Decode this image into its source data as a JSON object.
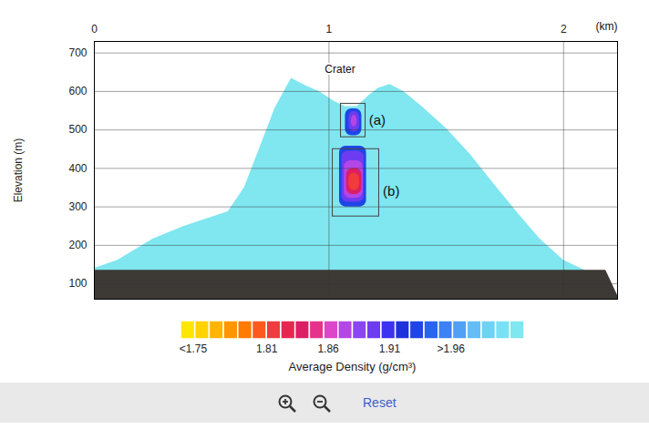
{
  "chart_data": {
    "type": "heatmap",
    "x_label": "(km)",
    "y_label": "Elevation (m)",
    "xlim": [
      0,
      2.23
    ],
    "xticks": [
      0,
      1,
      2
    ],
    "ylim": [
      60,
      730
    ],
    "yticks": [
      100,
      200,
      300,
      400,
      500,
      600,
      700
    ],
    "grid": true,
    "profile": {
      "x": [
        0,
        0.1,
        0.25,
        0.38,
        0.5,
        0.57,
        0.64,
        0.7,
        0.77,
        0.84,
        0.9,
        0.96,
        1.02,
        1.07,
        1.12,
        1.17,
        1.21,
        1.26,
        1.32,
        1.4,
        1.5,
        1.6,
        1.7,
        1.8,
        1.9,
        2.0,
        2.09
      ],
      "elevation": [
        140,
        161,
        216,
        249,
        273,
        287,
        350,
        445,
        556,
        634,
        615,
        599,
        575,
        561,
        561,
        589,
        608,
        618,
        599,
        559,
        504,
        438,
        362,
        287,
        216,
        161,
        135
      ]
    },
    "basement": {
      "x": [
        0,
        2.18,
        2.23
      ],
      "elevation": [
        135,
        135,
        70
      ]
    },
    "cells": [
      {
        "x1": 1.07,
        "x2": 1.14,
        "y1": 485,
        "y2": 555,
        "density": 1.93
      },
      {
        "x1": 1.085,
        "x2": 1.13,
        "y1": 495,
        "y2": 548,
        "density": 1.9
      },
      {
        "x1": 1.095,
        "x2": 1.12,
        "y1": 508,
        "y2": 538,
        "density": 1.88
      },
      {
        "x1": 1.045,
        "x2": 1.16,
        "y1": 300,
        "y2": 458,
        "density": 1.93
      },
      {
        "x1": 1.055,
        "x2": 1.15,
        "y1": 312,
        "y2": 445,
        "density": 1.9
      },
      {
        "x1": 1.065,
        "x2": 1.145,
        "y1": 322,
        "y2": 420,
        "density": 1.87
      },
      {
        "x1": 1.075,
        "x2": 1.14,
        "y1": 332,
        "y2": 400,
        "density": 1.84
      },
      {
        "x1": 1.085,
        "x2": 1.13,
        "y1": 342,
        "y2": 388,
        "density": 1.82
      }
    ],
    "annotations": [
      {
        "text": "Crater",
        "x": 1.047,
        "y": 658
      },
      {
        "text": "(a)",
        "x": 1.17,
        "y": 525,
        "box": {
          "x1": 1.051,
          "x2": 1.156,
          "y1": 481,
          "y2": 568
        }
      },
      {
        "text": "(b)",
        "x": 1.23,
        "y": 339,
        "box": {
          "x1": 1.016,
          "x2": 1.214,
          "y1": 275,
          "y2": 450
        }
      }
    ],
    "colorbar": {
      "label": "Average Density (g/cm³)",
      "range": [
        1.74,
        2.02
      ],
      "ticks": [
        {
          "value": 1.75,
          "label": "<1.75"
        },
        1.81,
        1.86,
        1.91,
        {
          "value": 1.96,
          "label": ">1.96"
        }
      ],
      "colors": [
        "#ffe600",
        "#ffd200",
        "#ffb400",
        "#ff9600",
        "#ff7a00",
        "#ff5a1e",
        "#f03c3c",
        "#e62850",
        "#dc1e64",
        "#e6328c",
        "#dc46c8",
        "#b446e6",
        "#8c46f0",
        "#6e3cf0",
        "#3c32f0",
        "#1e32dc",
        "#1e46e6",
        "#2864f0",
        "#3c82f5",
        "#50a0f5",
        "#64bef5",
        "#6ed2f5",
        "#78e1f5",
        "#80e6f0"
      ]
    }
  },
  "toolbar": {
    "buttons": [
      "Reset"
    ]
  }
}
